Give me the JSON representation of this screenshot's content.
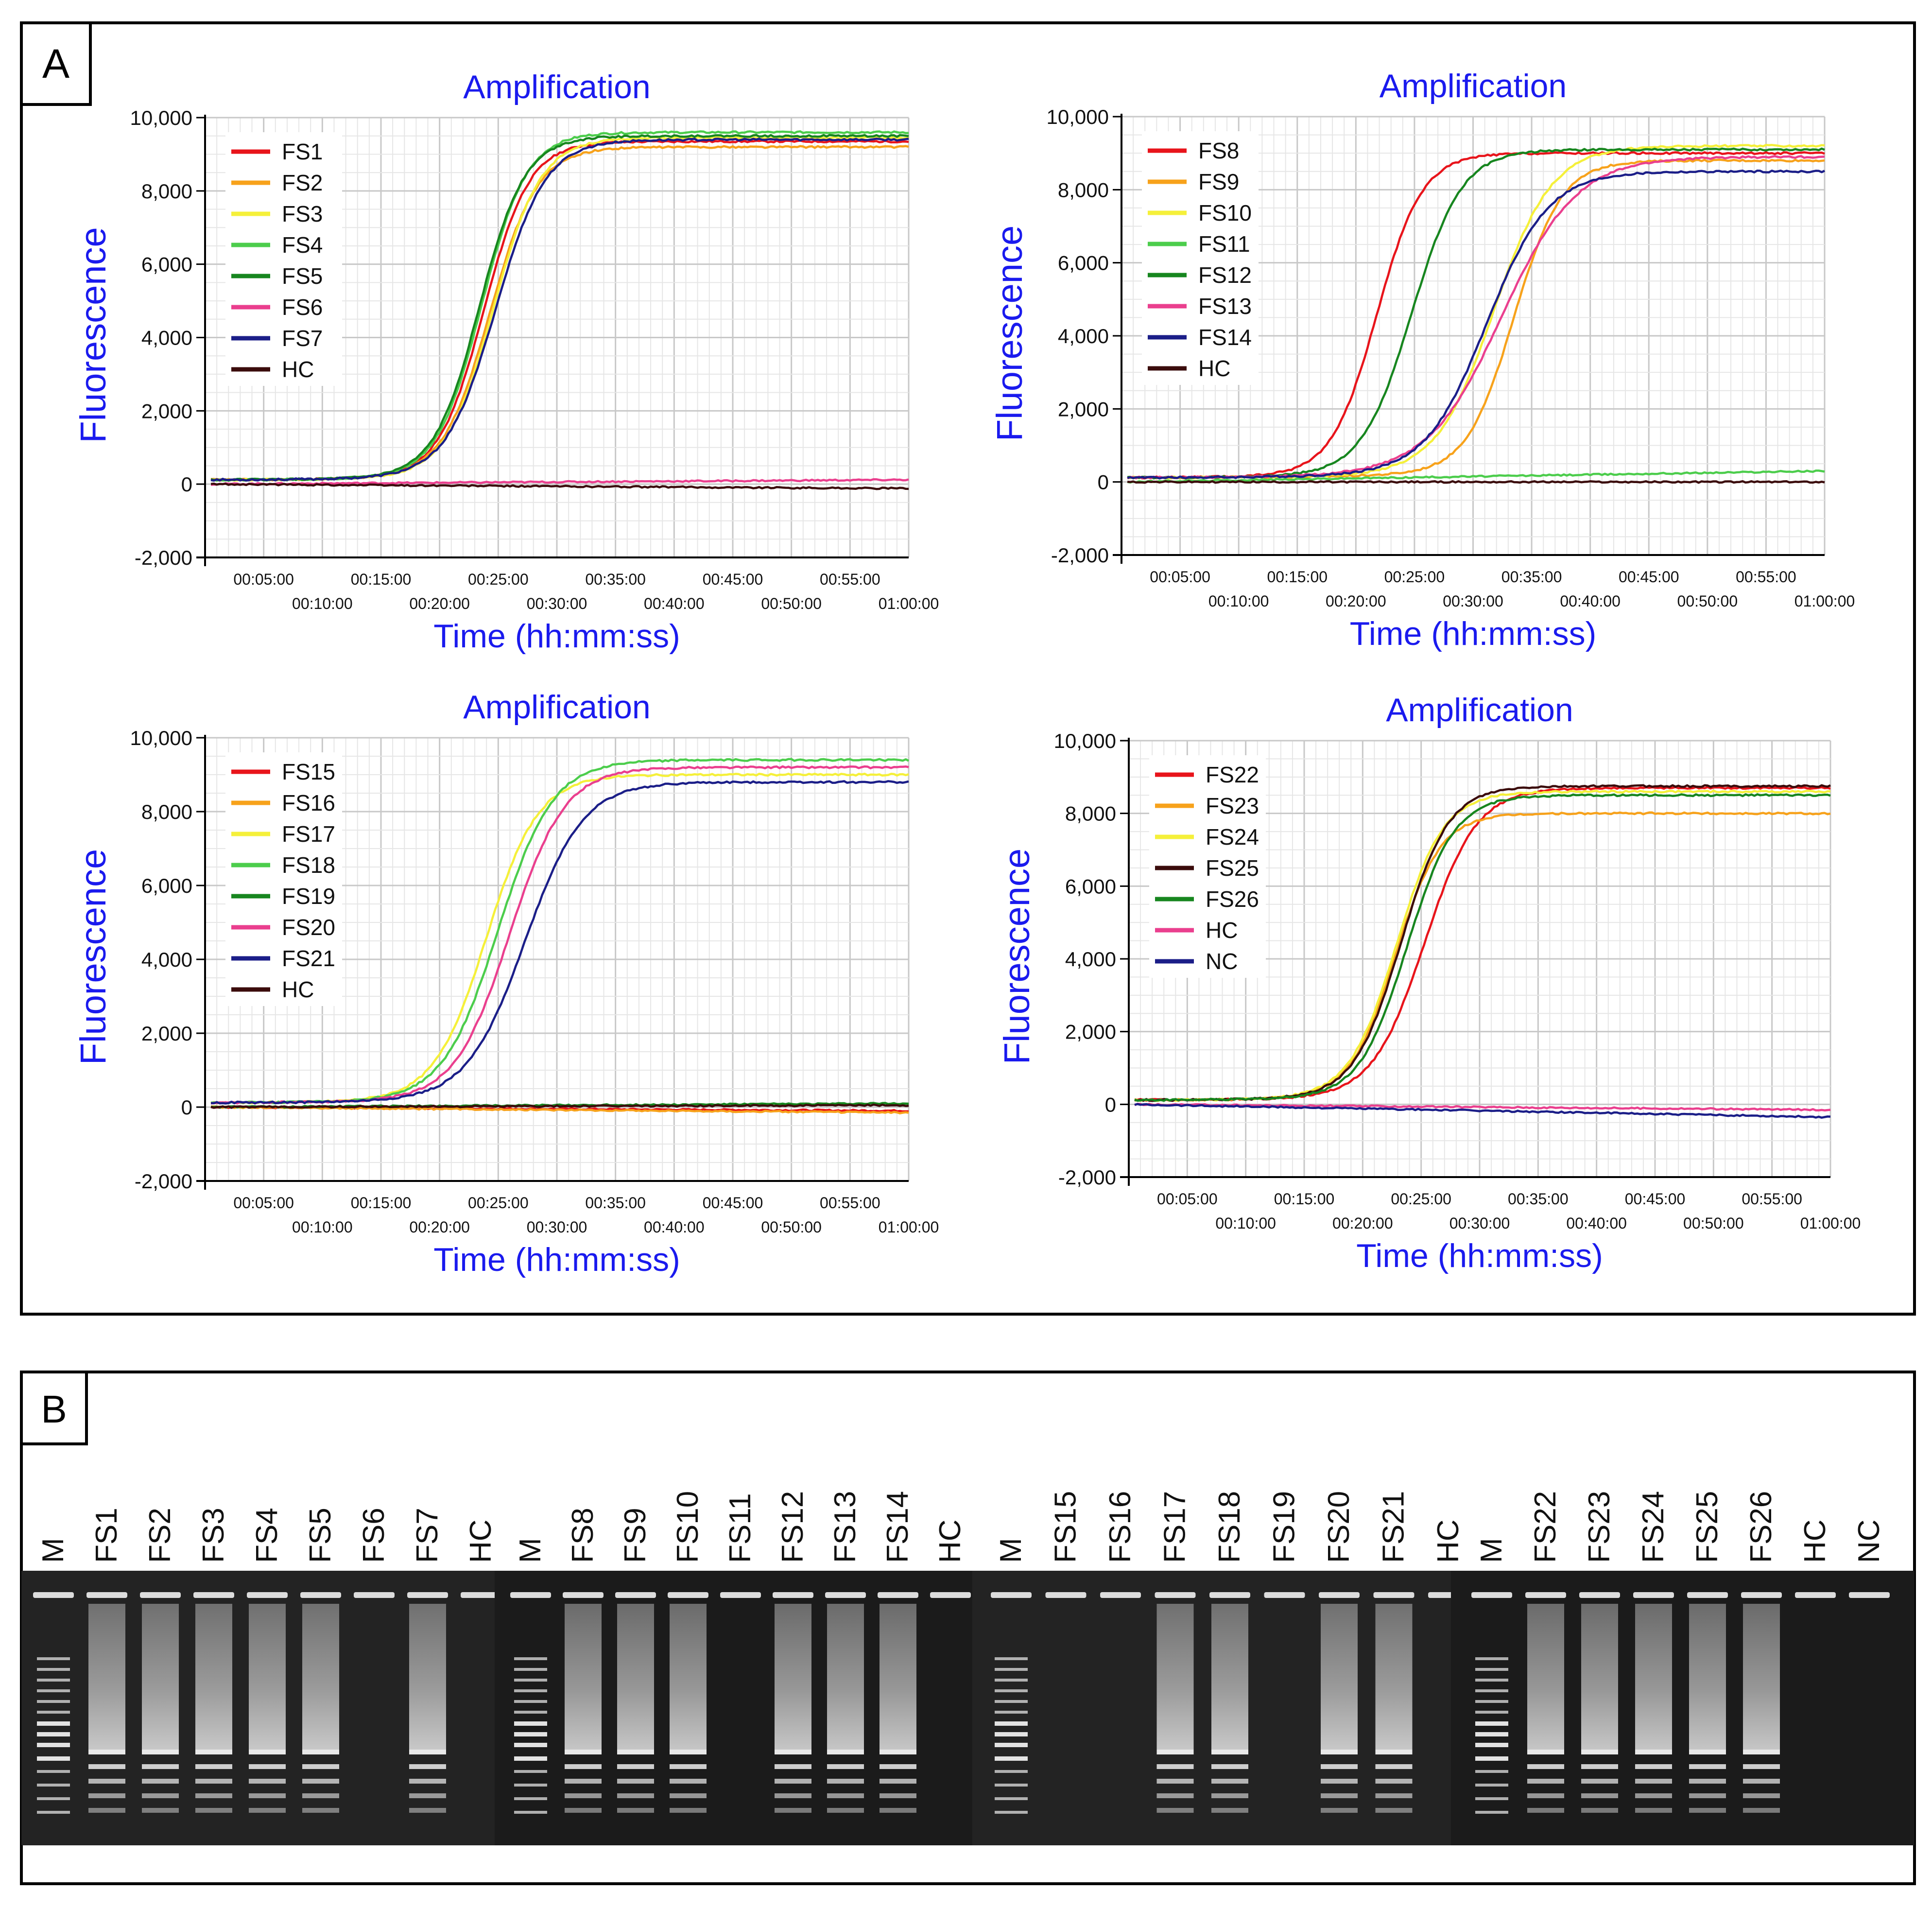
{
  "panel_a_label": "A",
  "panel_b_label": "B",
  "colors": {
    "red": "#e8141b",
    "orange": "#f7a21b",
    "yellow": "#f5f03a",
    "lightgreen": "#4ccd4c",
    "darkgreen": "#17861f",
    "pink": "#ea3f8e",
    "navy": "#1b1e88",
    "maroon": "#3b0c0c",
    "axis_blue": "#1a1aee",
    "grid_major": "#c8c8c8",
    "grid_minor": "#e6e6e6"
  },
  "chart_data": [
    {
      "type": "line",
      "title": "Amplification",
      "xlabel": "Time (hh:mm:ss)",
      "ylabel": "Fluorescence",
      "xlim": [
        0,
        60
      ],
      "ylim": [
        -2000,
        10000
      ],
      "yticks": [
        "10,000",
        "8,000",
        "6,000",
        "4,000",
        "2,000",
        "0",
        "-2,000"
      ],
      "xticks_upper": [
        "00:05:00",
        "00:15:00",
        "00:25:00",
        "00:35:00",
        "00:45:00",
        "00:55:00"
      ],
      "xticks_lower": [
        "00:10:00",
        "00:20:00",
        "00:30:00",
        "00:40:00",
        "00:50:00",
        "01:00:00"
      ],
      "legend_position": "top-left",
      "series": [
        {
          "name": "FS1",
          "color": "red",
          "tt": 23.8,
          "plateau": 9350,
          "k": 1.15
        },
        {
          "name": "FS2",
          "color": "orange",
          "tt": 24.3,
          "plateau": 9200,
          "k": 1.1
        },
        {
          "name": "FS3",
          "color": "yellow",
          "tt": 24.6,
          "plateau": 9450,
          "k": 1.1
        },
        {
          "name": "FS4",
          "color": "lightgreen",
          "tt": 23.6,
          "plateau": 9600,
          "k": 1.15
        },
        {
          "name": "FS5",
          "color": "darkgreen",
          "tt": 23.4,
          "plateau": 9500,
          "k": 1.15
        },
        {
          "name": "FS6",
          "color": "pink",
          "flat": true,
          "end": 120
        },
        {
          "name": "FS7",
          "color": "navy",
          "tt": 24.8,
          "plateau": 9400,
          "k": 1.05
        },
        {
          "name": "HC",
          "color": "maroon",
          "flat": true,
          "end": -120
        }
      ]
    },
    {
      "type": "line",
      "title": "Amplification",
      "xlabel": "Time (hh:mm:ss)",
      "ylabel": "Fluorescence",
      "xlim": [
        0,
        60
      ],
      "ylim": [
        -2000,
        10000
      ],
      "yticks": [
        "10,000",
        "8,000",
        "6,000",
        "4,000",
        "2,000",
        "0",
        "-2,000"
      ],
      "xticks_upper": [
        "00:05:00",
        "00:15:00",
        "00:25:00",
        "00:35:00",
        "00:45:00",
        "00:55:00"
      ],
      "xticks_lower": [
        "00:10:00",
        "00:20:00",
        "00:30:00",
        "00:40:00",
        "00:50:00",
        "01:00:00"
      ],
      "legend_position": "top-left",
      "series": [
        {
          "name": "FS8",
          "color": "red",
          "tt": 21.8,
          "plateau": 9000,
          "k": 1.15
        },
        {
          "name": "FS9",
          "color": "orange",
          "tt": 33.5,
          "plateau": 8800,
          "k": 1.1
        },
        {
          "name": "FS10",
          "color": "yellow",
          "tt": 31.8,
          "plateau": 9200,
          "k": 0.9
        },
        {
          "name": "FS11",
          "color": "lightgreen",
          "flat": true,
          "end": 300
        },
        {
          "name": "FS12",
          "color": "darkgreen",
          "tt": 24.8,
          "plateau": 9100,
          "k": 1.05
        },
        {
          "name": "FS13",
          "color": "pink",
          "tt": 32.5,
          "plateau": 8900,
          "k": 0.7
        },
        {
          "name": "FS14",
          "color": "navy",
          "tt": 31.2,
          "plateau": 8500,
          "k": 0.85
        },
        {
          "name": "HC",
          "color": "maroon",
          "flat": true,
          "end": 0
        }
      ]
    },
    {
      "type": "line",
      "title": "Amplification",
      "xlabel": "Time (hh:mm:ss)",
      "ylabel": "Fluorescence",
      "xlim": [
        0,
        60
      ],
      "ylim": [
        -2000,
        10000
      ],
      "yticks": [
        "10,000",
        "8,000",
        "6,000",
        "4,000",
        "2,000",
        "0",
        "-2,000"
      ],
      "xticks_upper": [
        "00:05:00",
        "00:15:00",
        "00:25:00",
        "00:35:00",
        "00:45:00",
        "00:55:00"
      ],
      "xticks_lower": [
        "00:10:00",
        "00:20:00",
        "00:30:00",
        "00:40:00",
        "00:50:00",
        "01:00:00"
      ],
      "legend_position": "top-left",
      "series": [
        {
          "name": "FS15",
          "color": "red",
          "flat": true,
          "end": -100
        },
        {
          "name": "FS16",
          "color": "orange",
          "flat": true,
          "end": -150
        },
        {
          "name": "FS17",
          "color": "yellow",
          "tt": 24.0,
          "plateau": 9000,
          "k": 1.0
        },
        {
          "name": "FS18",
          "color": "lightgreen",
          "tt": 25.0,
          "plateau": 9400,
          "k": 0.95
        },
        {
          "name": "FS19",
          "color": "darkgreen",
          "flat": true,
          "end": 100
        },
        {
          "name": "FS20",
          "color": "pink",
          "tt": 26.0,
          "plateau": 9200,
          "k": 0.95
        },
        {
          "name": "FS21",
          "color": "navy",
          "tt": 27.3,
          "plateau": 8800,
          "k": 0.9
        },
        {
          "name": "HC",
          "color": "maroon",
          "flat": true,
          "end": 50
        }
      ]
    },
    {
      "type": "line",
      "title": "Amplification",
      "xlabel": "Time (hh:mm:ss)",
      "ylabel": "Fluorescence",
      "xlim": [
        0,
        60
      ],
      "ylim": [
        -2000,
        10000
      ],
      "yticks": [
        "10,000",
        "8,000",
        "6,000",
        "4,000",
        "2,000",
        "0",
        "-2,000"
      ],
      "xticks_upper": [
        "00:05:00",
        "00:15:00",
        "00:25:00",
        "00:35:00",
        "00:45:00",
        "00:55:00"
      ],
      "xticks_lower": [
        "00:10:00",
        "00:20:00",
        "00:30:00",
        "00:40:00",
        "00:50:00",
        "01:00:00"
      ],
      "legend_position": "top-left",
      "series": [
        {
          "name": "FS22",
          "color": "red",
          "tt": 25.3,
          "plateau": 8700,
          "k": 1.0
        },
        {
          "name": "FS23",
          "color": "orange",
          "tt": 22.8,
          "plateau": 8000,
          "k": 1.15
        },
        {
          "name": "FS24",
          "color": "yellow",
          "tt": 22.9,
          "plateau": 8600,
          "k": 1.1
        },
        {
          "name": "FS25",
          "color": "maroon",
          "tt": 23.3,
          "plateau": 8750,
          "k": 1.1
        },
        {
          "name": "FS26",
          "color": "darkgreen",
          "tt": 23.8,
          "plateau": 8500,
          "k": 1.1
        },
        {
          "name": "HC",
          "color": "pink",
          "flat": true,
          "end": -150
        },
        {
          "name": "NC",
          "color": "navy",
          "flat": true,
          "end": -350
        }
      ]
    }
  ],
  "gels": [
    {
      "lanes": [
        "M",
        "FS1",
        "FS2",
        "FS3",
        "FS4",
        "FS5",
        "FS6",
        "FS7",
        "HC"
      ],
      "positive": [
        false,
        true,
        true,
        true,
        true,
        true,
        false,
        true,
        false
      ]
    },
    {
      "lanes": [
        "M",
        "FS8",
        "FS9",
        "FS10",
        "FS11",
        "FS12",
        "FS13",
        "FS14",
        "HC"
      ],
      "positive": [
        false,
        true,
        true,
        true,
        false,
        true,
        true,
        true,
        false
      ]
    },
    {
      "lanes": [
        "M",
        "FS15",
        "FS16",
        "FS17",
        "FS18",
        "FS19",
        "FS20",
        "FS21",
        "HC"
      ],
      "positive": [
        false,
        false,
        false,
        true,
        true,
        false,
        true,
        true,
        false
      ]
    },
    {
      "lanes": [
        "M",
        "FS22",
        "FS23",
        "FS24",
        "FS25",
        "FS26",
        "HC",
        "NC"
      ],
      "positive": [
        false,
        true,
        true,
        true,
        true,
        true,
        false,
        false
      ]
    }
  ]
}
